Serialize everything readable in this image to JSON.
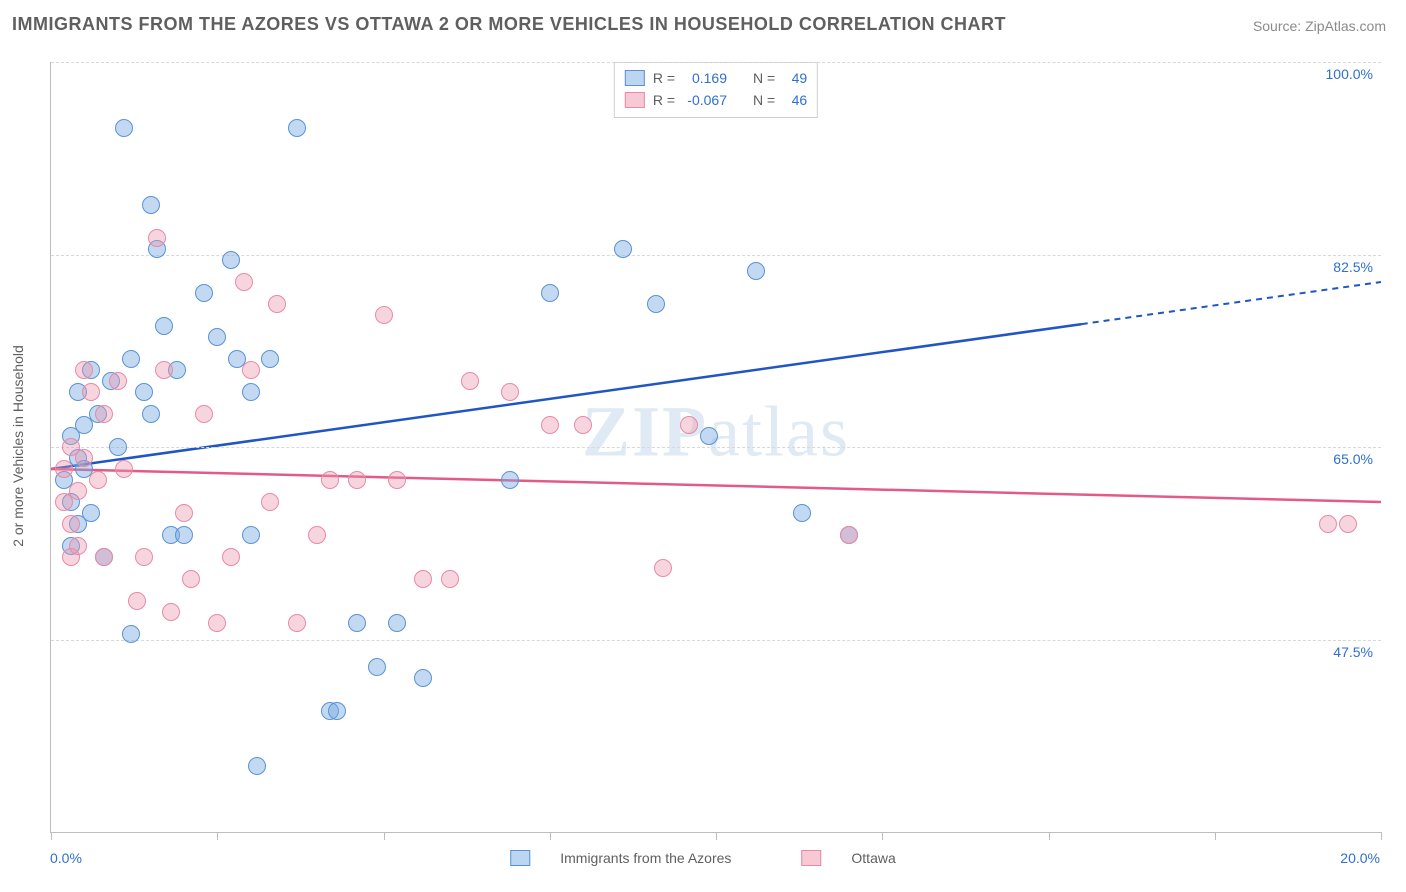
{
  "title": "IMMIGRANTS FROM THE AZORES VS OTTAWA 2 OR MORE VEHICLES IN HOUSEHOLD CORRELATION CHART",
  "source": "Source: ZipAtlas.com",
  "watermark": "ZIPatlas",
  "y_axis": {
    "title": "2 or more Vehicles in Household",
    "min": 30.0,
    "max": 100.0,
    "ticks": [
      47.5,
      65.0,
      82.5,
      100.0
    ],
    "tick_labels": [
      "47.5%",
      "65.0%",
      "82.5%",
      "100.0%"
    ]
  },
  "x_axis": {
    "min": 0.0,
    "max": 20.0,
    "label_left": "0.0%",
    "label_right": "20.0%",
    "tick_positions": [
      0,
      2.5,
      5,
      7.5,
      10,
      12.5,
      15,
      17.5,
      20
    ]
  },
  "legend_stats": {
    "rows": [
      {
        "swatch_fill": "#bcd5f0",
        "swatch_border": "#5a93d5",
        "r_label": "R =",
        "r_value": "0.169",
        "n_label": "N =",
        "n_value": "49"
      },
      {
        "swatch_fill": "#f6c9d4",
        "swatch_border": "#e88aa5",
        "r_label": "R =",
        "r_value": "-0.067",
        "n_label": "N =",
        "n_value": "46"
      }
    ]
  },
  "series_legend": [
    {
      "swatch_fill": "#bcd5f0",
      "swatch_border": "#5a93d5",
      "label": "Immigrants from the Azores"
    },
    {
      "swatch_fill": "#f6c9d4",
      "swatch_border": "#e88aa5",
      "label": "Ottawa"
    }
  ],
  "series": [
    {
      "name": "azores",
      "fill": "rgba(120,170,225,0.45)",
      "stroke": "#5a93d5",
      "marker_size": 18,
      "trend_color": "#1f55c4",
      "trend": {
        "y_at_xmin": 63.0,
        "y_at_xmax": 80.0,
        "solid_until_x": 15.5
      },
      "points": [
        {
          "x": 0.2,
          "y": 62
        },
        {
          "x": 0.3,
          "y": 66
        },
        {
          "x": 0.3,
          "y": 60
        },
        {
          "x": 0.3,
          "y": 56
        },
        {
          "x": 0.4,
          "y": 70
        },
        {
          "x": 0.4,
          "y": 64
        },
        {
          "x": 0.4,
          "y": 58
        },
        {
          "x": 0.5,
          "y": 67
        },
        {
          "x": 0.5,
          "y": 63
        },
        {
          "x": 0.6,
          "y": 72
        },
        {
          "x": 0.6,
          "y": 59
        },
        {
          "x": 0.7,
          "y": 68
        },
        {
          "x": 0.8,
          "y": 55
        },
        {
          "x": 0.9,
          "y": 71
        },
        {
          "x": 1.0,
          "y": 65
        },
        {
          "x": 1.1,
          "y": 94
        },
        {
          "x": 1.2,
          "y": 73
        },
        {
          "x": 1.2,
          "y": 48
        },
        {
          "x": 1.4,
          "y": 70
        },
        {
          "x": 1.5,
          "y": 87
        },
        {
          "x": 1.5,
          "y": 68
        },
        {
          "x": 1.6,
          "y": 83
        },
        {
          "x": 1.7,
          "y": 76
        },
        {
          "x": 1.8,
          "y": 57
        },
        {
          "x": 1.9,
          "y": 72
        },
        {
          "x": 2.0,
          "y": 57
        },
        {
          "x": 2.3,
          "y": 79
        },
        {
          "x": 2.5,
          "y": 75
        },
        {
          "x": 2.7,
          "y": 82
        },
        {
          "x": 2.8,
          "y": 73
        },
        {
          "x": 3.0,
          "y": 70
        },
        {
          "x": 3.0,
          "y": 57
        },
        {
          "x": 3.1,
          "y": 36
        },
        {
          "x": 3.3,
          "y": 73
        },
        {
          "x": 3.7,
          "y": 94
        },
        {
          "x": 4.2,
          "y": 41
        },
        {
          "x": 4.3,
          "y": 41
        },
        {
          "x": 4.6,
          "y": 49
        },
        {
          "x": 4.9,
          "y": 45
        },
        {
          "x": 5.2,
          "y": 49
        },
        {
          "x": 5.6,
          "y": 44
        },
        {
          "x": 6.9,
          "y": 62
        },
        {
          "x": 7.5,
          "y": 79
        },
        {
          "x": 8.6,
          "y": 83
        },
        {
          "x": 9.1,
          "y": 78
        },
        {
          "x": 9.9,
          "y": 66
        },
        {
          "x": 10.6,
          "y": 81
        },
        {
          "x": 11.3,
          "y": 59
        },
        {
          "x": 12.0,
          "y": 57
        }
      ]
    },
    {
      "name": "ottawa",
      "fill": "rgba(235,150,175,0.40)",
      "stroke": "#e88aa5",
      "marker_size": 18,
      "trend_color": "#e35a86",
      "trend": {
        "y_at_xmin": 63.0,
        "y_at_xmax": 60.0,
        "solid_until_x": 20.0
      },
      "points": [
        {
          "x": 0.2,
          "y": 63
        },
        {
          "x": 0.2,
          "y": 60
        },
        {
          "x": 0.3,
          "y": 58
        },
        {
          "x": 0.3,
          "y": 55
        },
        {
          "x": 0.3,
          "y": 65
        },
        {
          "x": 0.4,
          "y": 61
        },
        {
          "x": 0.4,
          "y": 56
        },
        {
          "x": 0.5,
          "y": 72
        },
        {
          "x": 0.5,
          "y": 64
        },
        {
          "x": 0.6,
          "y": 70
        },
        {
          "x": 0.7,
          "y": 62
        },
        {
          "x": 0.8,
          "y": 68
        },
        {
          "x": 0.8,
          "y": 55
        },
        {
          "x": 1.0,
          "y": 71
        },
        {
          "x": 1.1,
          "y": 63
        },
        {
          "x": 1.3,
          "y": 51
        },
        {
          "x": 1.4,
          "y": 55
        },
        {
          "x": 1.6,
          "y": 84
        },
        {
          "x": 1.7,
          "y": 72
        },
        {
          "x": 1.8,
          "y": 50
        },
        {
          "x": 2.0,
          "y": 59
        },
        {
          "x": 2.1,
          "y": 53
        },
        {
          "x": 2.3,
          "y": 68
        },
        {
          "x": 2.5,
          "y": 49
        },
        {
          "x": 2.7,
          "y": 55
        },
        {
          "x": 2.9,
          "y": 80
        },
        {
          "x": 3.0,
          "y": 72
        },
        {
          "x": 3.3,
          "y": 60
        },
        {
          "x": 3.4,
          "y": 78
        },
        {
          "x": 3.7,
          "y": 49
        },
        {
          "x": 4.0,
          "y": 57
        },
        {
          "x": 4.2,
          "y": 62
        },
        {
          "x": 4.6,
          "y": 62
        },
        {
          "x": 5.0,
          "y": 77
        },
        {
          "x": 5.2,
          "y": 62
        },
        {
          "x": 5.6,
          "y": 53
        },
        {
          "x": 6.0,
          "y": 53
        },
        {
          "x": 6.3,
          "y": 71
        },
        {
          "x": 6.9,
          "y": 70
        },
        {
          "x": 7.5,
          "y": 67
        },
        {
          "x": 8.0,
          "y": 67
        },
        {
          "x": 9.2,
          "y": 54
        },
        {
          "x": 9.6,
          "y": 67
        },
        {
          "x": 12.0,
          "y": 57
        },
        {
          "x": 19.2,
          "y": 58
        },
        {
          "x": 19.5,
          "y": 58
        }
      ]
    }
  ],
  "chart_style": {
    "background": "#ffffff",
    "grid_color": "#d8d8d8",
    "axis_color": "#bdbdbd",
    "label_color": "#2f6fd0",
    "title_color": "#5f5f5f",
    "title_fontsize": 18,
    "label_fontsize": 14
  }
}
